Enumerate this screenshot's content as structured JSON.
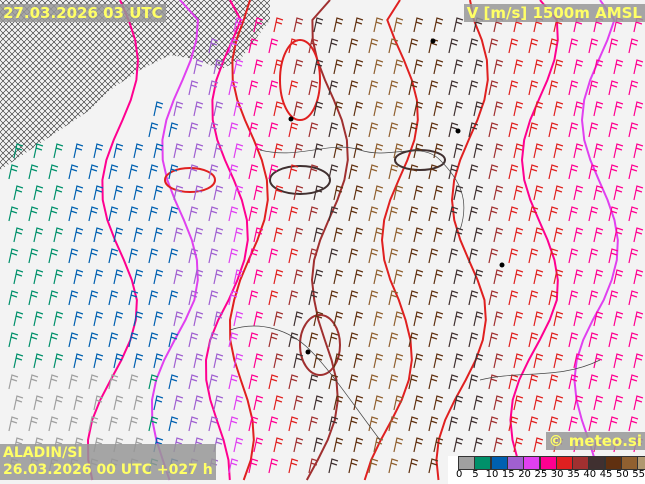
{
  "header": {
    "valid_time": "27.03.2026 03 UTC",
    "field": "V [m/s] 1500m AMSL"
  },
  "footer": {
    "model": "ALADIN/SI",
    "run": "26.03.2026 00 UTC +027 h",
    "copyright": "© meteo.si"
  },
  "legend": {
    "ticks": [
      "0",
      "5",
      "10",
      "15",
      "20",
      "25",
      "30",
      "35",
      "40",
      "45",
      "50",
      "55"
    ],
    "colors": [
      "#a0a0a0",
      "#00906a",
      "#0060b0",
      "#a060d0",
      "#e040f0",
      "#ff0090",
      "#e02020",
      "#a03030",
      "#403030",
      "#603010",
      "#906030",
      "#b09870"
    ]
  }
}
